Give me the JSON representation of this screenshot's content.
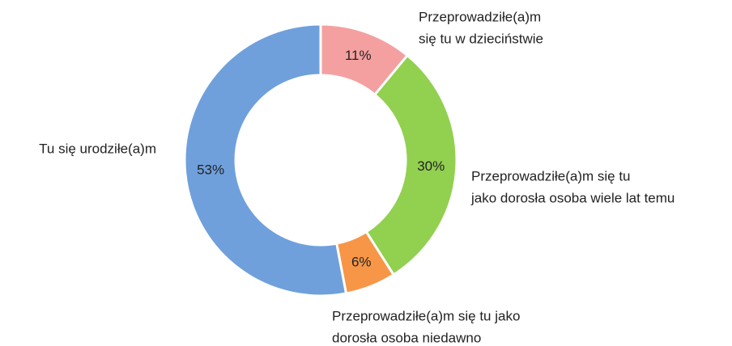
{
  "chart_data": {
    "type": "donut",
    "categories": [
      [
        "Przeprowadziłe(a)m",
        "się tu w dzieciństwie"
      ],
      [
        "Przeprowadziłe(a)m się tu",
        "jako dorosła osoba wiele lat temu"
      ],
      [
        "Przeprowadziłe(a)m się tu jako",
        "dorosła osoba niedawno"
      ],
      [
        "Tu się urodziłe(a)m"
      ]
    ],
    "values": [
      11,
      30,
      6,
      53
    ],
    "value_labels": [
      "11%",
      "30%",
      "6%",
      "53%"
    ],
    "colors": [
      "#f4a0a0",
      "#92d050",
      "#f79646",
      "#6fa0dc"
    ]
  }
}
